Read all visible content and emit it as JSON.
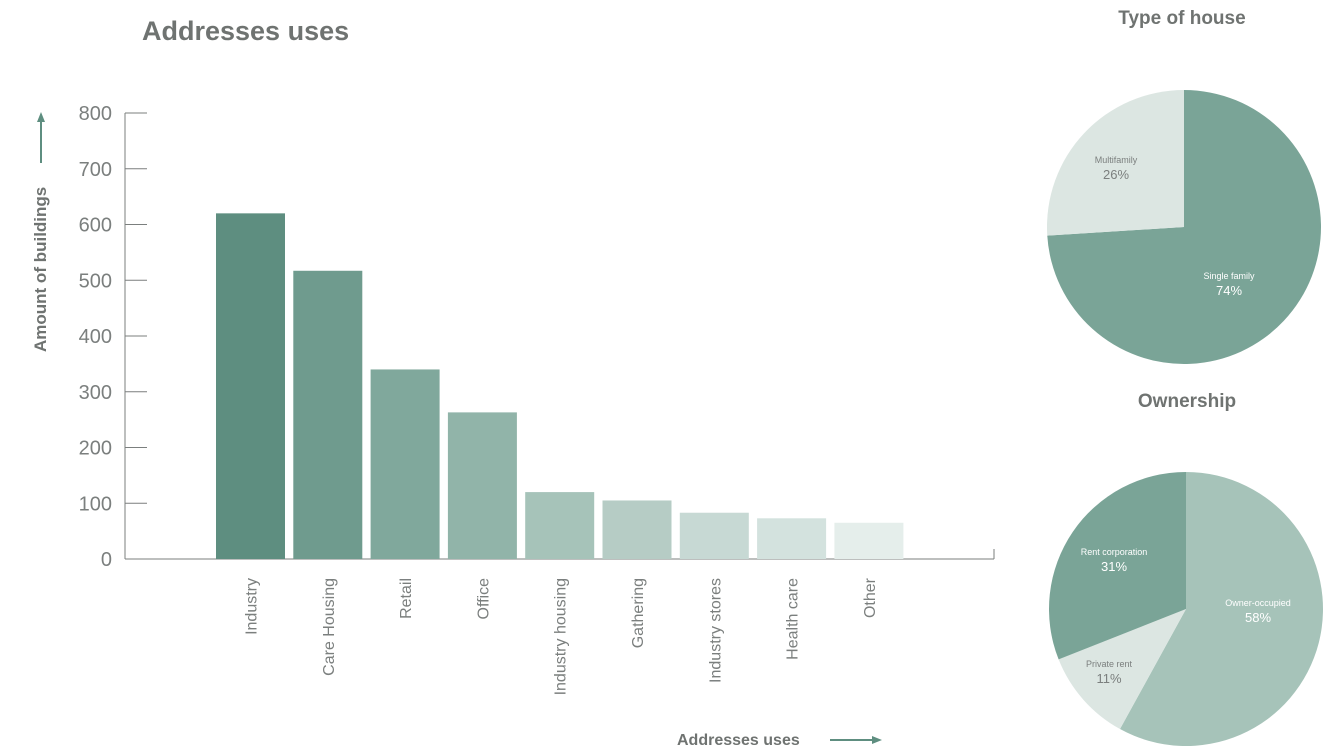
{
  "chart_data": [
    {
      "type": "bar",
      "title": "Addresses uses",
      "xlabel": "Addresses uses",
      "ylabel": "Amount of buildings",
      "categories": [
        "Industry",
        "Care Housing",
        "Retail",
        "Office",
        "Industry housing",
        "Gathering",
        "Industry stores",
        "Health care",
        "Other"
      ],
      "values": [
        620,
        517,
        340,
        263,
        120,
        105,
        83,
        73,
        65
      ],
      "ylim": [
        0,
        800
      ],
      "yticks": [
        0,
        100,
        200,
        300,
        400,
        500,
        600,
        700,
        800
      ],
      "colors": [
        "#5e8e80",
        "#6f9b8e",
        "#80a89c",
        "#91b4a9",
        "#a6c3b9",
        "#b6ccc5",
        "#c7d9d4",
        "#d3e2de",
        "#e5eeeb"
      ],
      "grid": false
    },
    {
      "type": "pie",
      "title": "Type of house",
      "slices": [
        {
          "label": "Single family",
          "pct_label": "74%",
          "value": 74,
          "color": "#7aa497"
        },
        {
          "label": "Multifamily",
          "pct_label": "26%",
          "value": 26,
          "color": "#dce6e2"
        }
      ]
    },
    {
      "type": "pie",
      "title": "Ownership",
      "slices": [
        {
          "label": "Owner-occupied",
          "pct_label": "58%",
          "value": 58,
          "color": "#a6c3b9"
        },
        {
          "label": "Private rent",
          "pct_label": "11%",
          "value": 11,
          "color": "#dce6e2"
        },
        {
          "label": "Rent corporation",
          "pct_label": "31%",
          "value": 31,
          "color": "#7aa497"
        }
      ]
    }
  ]
}
